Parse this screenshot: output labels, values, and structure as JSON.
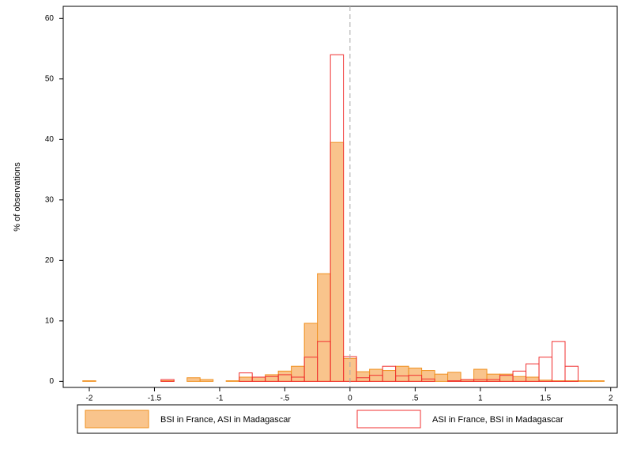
{
  "chart_data": {
    "type": "histogram",
    "y_label": "% of observations",
    "bins": [
      -2.05,
      -1.95,
      -1.85,
      -1.75,
      -1.65,
      -1.55,
      -1.45,
      -1.35,
      -1.25,
      -1.15,
      -1.05,
      -0.95,
      -0.85,
      -0.75,
      -0.65,
      -0.55,
      -0.45,
      -0.35,
      -0.25,
      -0.15,
      -0.05,
      0.05,
      0.15,
      0.25,
      0.35,
      0.45,
      0.55,
      0.65,
      0.75,
      0.85,
      0.95,
      1.05,
      1.15,
      1.25,
      1.35,
      1.45,
      1.55,
      1.65,
      1.75,
      1.85,
      1.95
    ],
    "series": [
      {
        "name": "BSI in France, ASI in Madagascar",
        "color": "#f9c48c",
        "edge_color": "#f0901e",
        "values": [
          0.1,
          0,
          0,
          0,
          0,
          0,
          0.1,
          0,
          0.6,
          0.3,
          0,
          0.1,
          0.7,
          0.7,
          1.1,
          1.7,
          2.5,
          9.6,
          17.8,
          39.5,
          3.8,
          1.6,
          2.0,
          1.8,
          2.5,
          2.2,
          1.8,
          1.2,
          1.5,
          0.3,
          2.0,
          1.2,
          1.2,
          0.8,
          0.7,
          0.2,
          0.1,
          0.1,
          0.1,
          0.1
        ]
      },
      {
        "name": "ASI in France, BSI in Madagascar",
        "color": "none",
        "edge_color": "#f03030",
        "values": [
          0,
          0,
          0,
          0,
          0,
          0,
          0.3,
          0,
          0,
          0,
          0,
          0,
          1.4,
          0.7,
          0.8,
          1.1,
          0.7,
          4.0,
          6.6,
          54,
          4.1,
          0.6,
          1.0,
          2.5,
          0.9,
          1.0,
          0.4,
          0,
          0.1,
          0.3,
          0.3,
          0.3,
          1.0,
          1.7,
          2.9,
          4.0,
          6.6,
          2.5,
          0,
          0
        ]
      }
    ],
    "xlim": [
      -2.2,
      2.05
    ],
    "xticks": [
      -2,
      -1.5,
      -1,
      {
        "value": -0.5,
        "label": "-.5"
      },
      0,
      {
        "value": 0.5,
        "label": ".5"
      },
      1,
      1.5,
      2
    ],
    "ylim": [
      -1,
      62
    ],
    "yticks": [
      0,
      10,
      20,
      30,
      40,
      50,
      60
    ],
    "vline": 0,
    "legend": "bottom"
  }
}
